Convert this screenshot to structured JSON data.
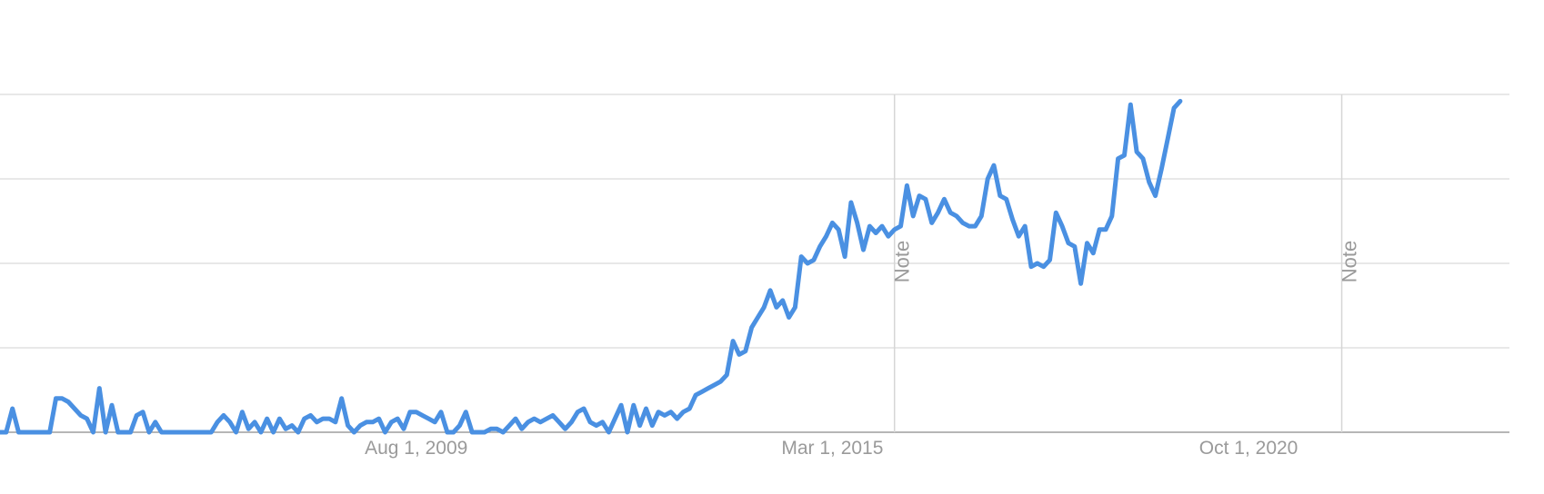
{
  "chart_data": {
    "type": "line",
    "x_start": "2004-01-01",
    "x_end": "2024-04-01",
    "x_step": "month",
    "ylim": [
      0,
      100
    ],
    "y_gridlines": [
      0,
      25,
      50,
      75,
      100
    ],
    "grid": true,
    "legend": "none",
    "x_ticks": [
      {
        "date": "2009-08-01",
        "label": "Aug 1, 2009"
      },
      {
        "date": "2015-03-01",
        "label": "Mar 1, 2015"
      },
      {
        "date": "2020-10-01",
        "label": "Oct 1, 2020"
      }
    ],
    "notes": [
      {
        "date": "2016-01-01",
        "label": "Note"
      },
      {
        "date": "2022-01-01",
        "label": "Note"
      }
    ],
    "series": [
      {
        "color": "#4a90e2",
        "values": [
          0,
          0,
          7,
          0,
          0,
          0,
          0,
          0,
          0,
          10,
          10,
          9,
          7,
          5,
          4,
          0,
          13,
          0,
          8,
          0,
          0,
          0,
          5,
          6,
          0,
          3,
          0,
          0,
          0,
          0,
          0,
          0,
          0,
          0,
          0,
          3,
          5,
          3,
          0,
          6,
          1,
          3,
          0,
          4,
          0,
          4,
          1,
          2,
          0,
          4,
          5,
          3,
          4,
          4,
          3,
          10,
          2,
          0,
          2,
          3,
          3,
          4,
          0,
          3,
          4,
          1,
          6,
          6,
          5,
          4,
          3,
          6,
          0,
          0,
          2,
          6,
          0,
          0,
          0,
          1,
          1,
          0,
          2,
          4,
          1,
          3,
          4,
          3,
          4,
          5,
          3,
          1,
          3,
          6,
          7,
          3,
          2,
          3,
          0,
          4,
          8,
          0,
          8,
          2,
          7,
          2,
          6,
          5,
          6,
          4,
          6,
          7,
          11,
          12,
          13,
          14,
          15,
          17,
          27,
          23,
          24,
          31,
          34,
          37,
          42,
          37,
          39,
          34,
          37,
          52,
          50,
          51,
          55,
          58,
          62,
          60,
          52,
          68,
          62,
          54,
          61,
          59,
          61,
          58,
          60,
          61,
          73,
          64,
          70,
          69,
          62,
          65,
          69,
          65,
          64,
          62,
          61,
          61,
          64,
          75,
          79,
          70,
          69,
          63,
          58,
          61,
          49,
          50,
          49,
          51,
          65,
          61,
          56,
          55,
          44,
          56,
          53,
          60,
          60,
          64,
          81,
          82,
          97,
          83,
          81,
          74,
          70,
          78,
          87,
          96,
          98
        ]
      }
    ]
  }
}
